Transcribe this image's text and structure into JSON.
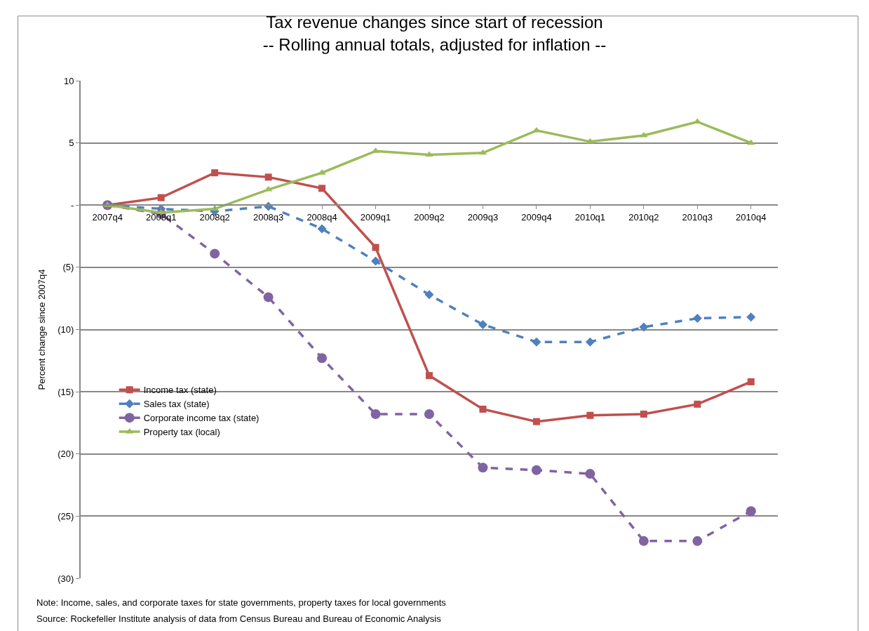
{
  "chart_data": {
    "type": "line",
    "title": "Tax revenue changes since start of recession\n-- Rolling annual totals, adjusted for inflation --",
    "ylabel": "Percent change since 2007q4",
    "categories": [
      "2007q4",
      "2008q1",
      "2008q2",
      "2008q3",
      "2008q4",
      "2009q1",
      "2009q2",
      "2009q3",
      "2009q4",
      "2010q1",
      "2010q2",
      "2010q3",
      "2010q4"
    ],
    "series": [
      {
        "name": "Income tax (state)",
        "color": "#c0504d",
        "marker": "square",
        "line_style": "solid",
        "values": [
          0,
          0.6,
          2.6,
          2.25,
          1.35,
          -3.4,
          -13.7,
          -16.4,
          -17.4,
          -16.9,
          -16.8,
          -16.0,
          -14.2
        ]
      },
      {
        "name": "Sales tax (state)",
        "color": "#4f81bd",
        "marker": "diamond",
        "line_style": "dashed",
        "values": [
          0,
          -0.3,
          -0.5,
          -0.1,
          -1.9,
          -4.5,
          -7.2,
          -9.6,
          -11.0,
          -11.0,
          -9.8,
          -9.1,
          -9.0
        ]
      },
      {
        "name": "Corporate income tax (state)",
        "color": "#8064a2",
        "marker": "circle",
        "line_style": "dashed",
        "values": [
          0,
          -0.7,
          -3.9,
          -7.4,
          -12.3,
          -16.8,
          -16.8,
          -21.1,
          -21.3,
          -21.6,
          -27.0,
          -27.0,
          -24.6
        ]
      },
      {
        "name": "Property tax (local)",
        "color": "#9bbb59",
        "marker": "triangle",
        "line_style": "solid",
        "values": [
          0,
          -0.6,
          -0.3,
          1.25,
          2.6,
          4.35,
          4.05,
          4.2,
          6.0,
          5.1,
          5.6,
          6.7,
          5.0
        ]
      }
    ],
    "ylim": [
      -30,
      10
    ],
    "yticks": [
      10,
      5,
      {
        "value": 0,
        "label": "-"
      },
      {
        "value": -5,
        "label": "(5)"
      },
      {
        "value": -10,
        "label": "(10)"
      },
      {
        "value": -15,
        "label": "(15)"
      },
      {
        "value": -20,
        "label": "(20)"
      },
      {
        "value": -25,
        "label": "(25)"
      },
      {
        "value": -30,
        "label": "(30)"
      }
    ],
    "grid": "y",
    "legend": "left",
    "annotations": [
      "Note: Income, sales, and corporate taxes for state governments, property taxes for local governments",
      "Source: Rockefeller Institute analysis of data from Census Bureau and Bureau of Economic Analysis"
    ]
  }
}
